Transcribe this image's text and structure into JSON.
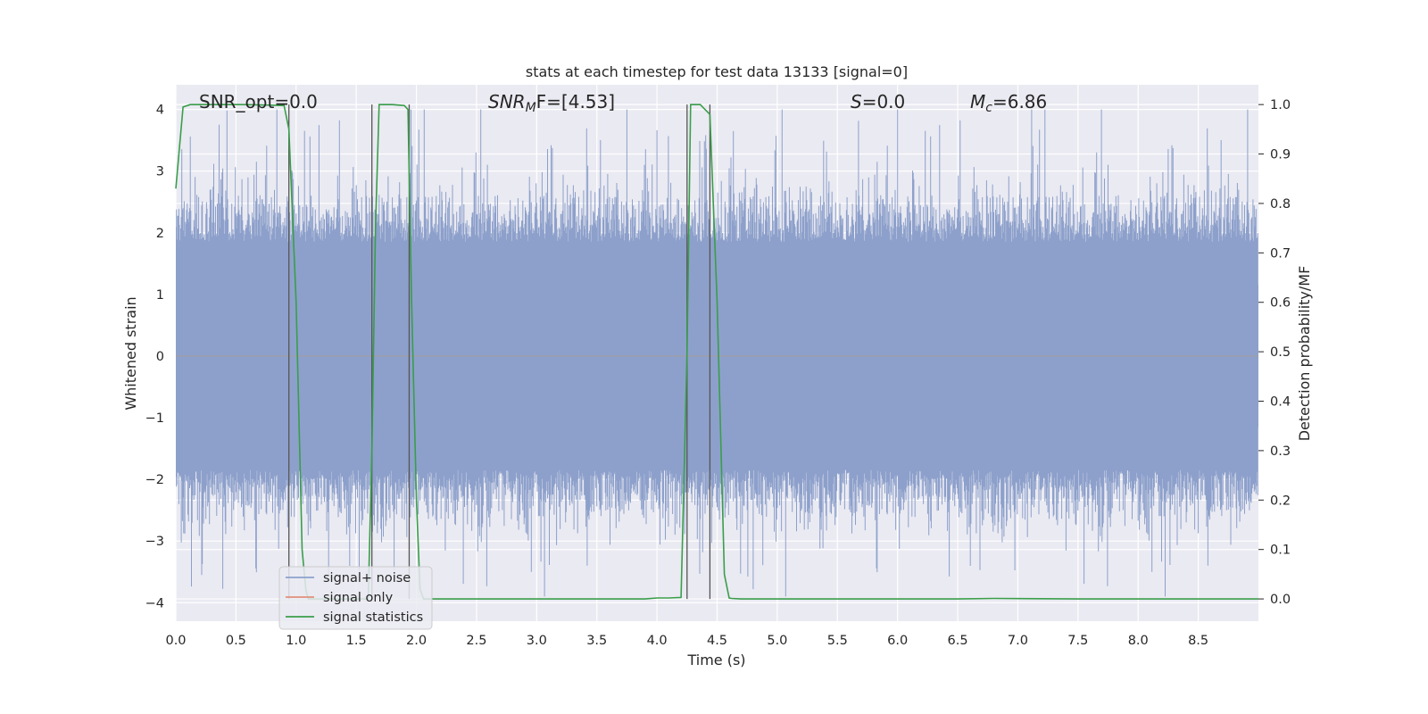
{
  "chart_data": {
    "type": "line",
    "title": "stats at each timestep for test data 13133 [signal=0]",
    "xlabel": "Time (s)",
    "ylabel": "Whitened strain",
    "ylabel_right": "Detection probability/MF",
    "xlim": [
      0.0,
      9.0
    ],
    "ylim": [
      -4.3,
      4.4
    ],
    "ylim_right": [
      -0.045,
      1.04
    ],
    "x_ticks": [
      0.0,
      0.5,
      1.0,
      1.5,
      2.0,
      2.5,
      3.0,
      3.5,
      4.0,
      4.5,
      5.0,
      5.5,
      6.0,
      6.5,
      7.0,
      7.5,
      8.0,
      8.5
    ],
    "x_tick_labels": [
      "0.0",
      "0.5",
      "1.0",
      "1.5",
      "2.0",
      "2.5",
      "3.0",
      "3.5",
      "4.0",
      "4.5",
      "5.0",
      "5.5",
      "6.0",
      "6.5",
      "7.0",
      "7.5",
      "8.0",
      "8.5"
    ],
    "y_ticks": [
      4,
      3,
      2,
      1,
      0,
      -1,
      -2,
      -3,
      -4
    ],
    "y_tick_labels": [
      "4",
      "3",
      "2",
      "1",
      "0",
      "−1",
      "−2",
      "−3",
      "−4"
    ],
    "y_right_ticks": [
      1.0,
      0.9,
      0.8,
      0.7,
      0.6,
      0.5,
      0.4,
      0.3,
      0.2,
      0.1,
      0.0
    ],
    "y_right_tick_labels": [
      "1.0",
      "0.9",
      "0.8",
      "0.7",
      "0.6",
      "0.5",
      "0.4",
      "0.3",
      "0.2",
      "0.1",
      "0.0"
    ],
    "annotations": {
      "snr_opt": "SNR_opt=0.0",
      "snr_mf_main": "SNR",
      "snr_mf_sub": "M",
      "snr_mf_rest": "F=[4.53]",
      "s_main": "S",
      "s_rest": "=0.0",
      "mc_main": "M",
      "mc_sub": "c",
      "mc_rest": "=6.86"
    },
    "noise": {
      "name": "signal+ noise",
      "color": "#8da0cb",
      "sample_rate_hz": 200,
      "typical_envelope": 1.85,
      "min_value": -3.9,
      "max_value": 4.0
    },
    "signal_only": {
      "name": "signal only",
      "color": "#e1917a",
      "value": 0.0
    },
    "statistics": {
      "name": "signal statistics",
      "color": "#3a9e4a",
      "x": [
        0.0,
        0.06,
        0.12,
        0.2,
        0.35,
        0.55,
        0.75,
        0.9,
        0.94,
        1.0,
        1.05,
        1.08,
        1.1,
        1.6,
        1.63,
        1.66,
        1.69,
        1.72,
        1.8,
        1.9,
        1.93,
        1.96,
        2.0,
        2.03,
        2.06,
        2.1,
        3.9,
        4.0,
        4.1,
        4.2,
        4.25,
        4.28,
        4.31,
        4.36,
        4.4,
        4.44,
        4.5,
        4.56,
        4.6,
        4.62,
        4.7,
        6.0,
        6.5,
        6.8,
        7.5,
        9.0
      ],
      "values": [
        0.83,
        0.995,
        1.0,
        1.0,
        1.0,
        1.0,
        0.999,
        0.998,
        0.95,
        0.6,
        0.1,
        0.02,
        0.0,
        0.0,
        0.3,
        0.75,
        1.0,
        1.0,
        1.0,
        0.998,
        0.99,
        0.6,
        0.2,
        0.02,
        0.0,
        0.0,
        0.0,
        0.002,
        0.002,
        0.003,
        0.5,
        1.0,
        1.0,
        1.0,
        0.99,
        0.98,
        0.6,
        0.05,
        0.002,
        0.001,
        0.0,
        0.0,
        0.0,
        0.001,
        0.0,
        0.0
      ]
    },
    "vlines": {
      "color": "#555555",
      "x": [
        0.94,
        1.63,
        1.94,
        4.25,
        4.44
      ]
    },
    "legend": {
      "location": "lower-left",
      "entries": [
        "signal+ noise",
        "signal only",
        "signal statistics"
      ]
    },
    "background_color": "#eaeaf2",
    "grid": true
  }
}
